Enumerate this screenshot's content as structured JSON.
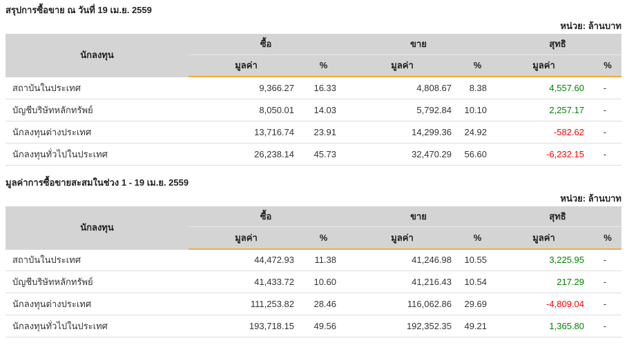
{
  "columns": {
    "investor": "นักลงทุน",
    "buy": "ซื้อ",
    "sell": "ขาย",
    "net": "สุทธิ",
    "value": "มูลค่า",
    "percent": "%"
  },
  "colors": {
    "header_background": "#d4d4d4",
    "accent_orange": "#f2a93b",
    "positive_green": "#008000",
    "negative_red": "#ff0000"
  },
  "tables": [
    {
      "title": "สรุปการซื้อขาย ณ วันที่ 19 เม.ย. 2559",
      "unit_label": "หน่วย: ล้านบาท",
      "rows": [
        {
          "name": "สถาบันในประเทศ",
          "buy_value": "9,366.27",
          "buy_pct": "16.33",
          "sell_value": "4,808.67",
          "sell_pct": "8.38",
          "net_value": "4,557.60",
          "net_class": "pos",
          "net_pct": "-"
        },
        {
          "name": "บัญชีบริษัทหลักทรัพย์",
          "buy_value": "8,050.01",
          "buy_pct": "14.03",
          "sell_value": "5,792.84",
          "sell_pct": "10.10",
          "net_value": "2,257.17",
          "net_class": "pos",
          "net_pct": "-"
        },
        {
          "name": "นักลงทุนต่างประเทศ",
          "buy_value": "13,716.74",
          "buy_pct": "23.91",
          "sell_value": "14,299.36",
          "sell_pct": "24.92",
          "net_value": "-582.62",
          "net_class": "neg",
          "net_pct": "-"
        },
        {
          "name": "นักลงทุนทั่วไปในประเทศ",
          "buy_value": "26,238.14",
          "buy_pct": "45.73",
          "sell_value": "32,470.29",
          "sell_pct": "56.60",
          "net_value": "-6,232.15",
          "net_class": "neg",
          "net_pct": "-"
        }
      ]
    },
    {
      "title": "มูลค่าการซื้อขายสะสมในช่วง 1 - 19 เม.ย. 2559",
      "unit_label": "หน่วย: ล้านบาท",
      "rows": [
        {
          "name": "สถาบันในประเทศ",
          "buy_value": "44,472.93",
          "buy_pct": "11.38",
          "sell_value": "41,246.98",
          "sell_pct": "10.55",
          "net_value": "3,225.95",
          "net_class": "pos",
          "net_pct": "-"
        },
        {
          "name": "บัญชีบริษัทหลักทรัพย์",
          "buy_value": "41,433.72",
          "buy_pct": "10.60",
          "sell_value": "41,216.43",
          "sell_pct": "10.54",
          "net_value": "217.29",
          "net_class": "pos",
          "net_pct": "-"
        },
        {
          "name": "นักลงทุนต่างประเทศ",
          "buy_value": "111,253.82",
          "buy_pct": "28.46",
          "sell_value": "116,062.86",
          "sell_pct": "29.69",
          "net_value": "-4,809.04",
          "net_class": "neg",
          "net_pct": "-"
        },
        {
          "name": "นักลงทุนทั่วไปในประเทศ",
          "buy_value": "193,718.15",
          "buy_pct": "49.56",
          "sell_value": "192,352.35",
          "sell_pct": "49.21",
          "net_value": "1,365.80",
          "net_class": "pos",
          "net_pct": "-"
        }
      ]
    }
  ]
}
